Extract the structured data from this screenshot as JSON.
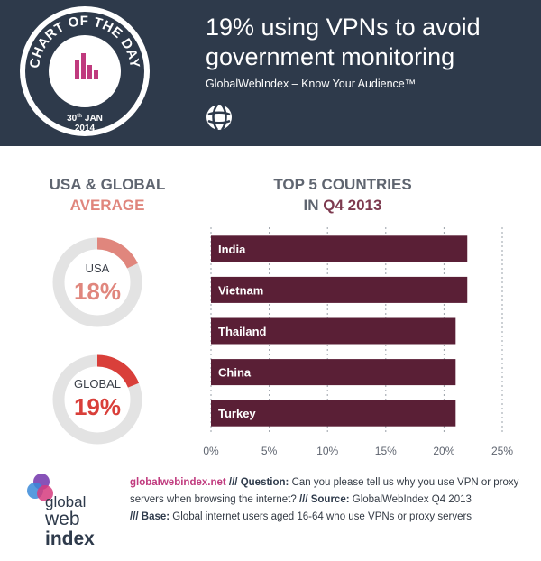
{
  "header": {
    "title_line1": "19% using VPNs to avoid",
    "title_line2": "government monitoring",
    "subtitle": "GlobalWebIndex – Know Your Audience™",
    "badge": {
      "top_text": "CHART OF THE DAY",
      "date_day": "30",
      "date_suffix": "th",
      "date_month": "JAN",
      "date_year": "2014"
    }
  },
  "left_panel": {
    "heading_line1": "USA & GLOBAL",
    "heading_line2": "AVERAGE",
    "donuts": [
      {
        "label": "USA",
        "value_text": "18%",
        "fraction": 0.18,
        "color": "#e0867d"
      },
      {
        "label": "GLOBAL",
        "value_text": "19%",
        "fraction": 0.19,
        "color": "#d93f3a"
      }
    ]
  },
  "right_panel": {
    "heading_line1": "TOP 5 COUNTRIES",
    "heading_line2_prefix": "IN ",
    "heading_line2_highlight": "Q4 2013"
  },
  "chart_data": {
    "type": "bar",
    "orientation": "horizontal",
    "categories": [
      "India",
      "Vietnam",
      "Thailand",
      "China",
      "Turkey"
    ],
    "values": [
      22,
      22,
      21,
      21,
      21
    ],
    "xlim": [
      0,
      25
    ],
    "xticks": [
      0,
      5,
      10,
      15,
      20,
      25
    ],
    "xtick_labels": [
      "0%",
      "5%",
      "10%",
      "15%",
      "20%",
      "25%"
    ],
    "bar_color": "#5a1f36",
    "grid": true,
    "title": "",
    "xlabel": "",
    "ylabel": ""
  },
  "footer": {
    "logo_line1": "global",
    "logo_line2": "web",
    "logo_line3": "index",
    "site": "globalwebindex.net",
    "sep": " /// ",
    "question_label": "Question:",
    "question_text": " Can you please tell us why you use VPN or proxy servers when browsing the internet?",
    "source_label": "Source:",
    "source_text": " GlobalWebIndex Q4 2013",
    "base_label": "Base:",
    "base_text": " Global internet users aged 16-64 who use VPNs or proxy servers"
  },
  "colors": {
    "header_bg": "#2e3a4b",
    "accent_pink": "#c03a7e",
    "donut_track": "#e3e3e3"
  }
}
